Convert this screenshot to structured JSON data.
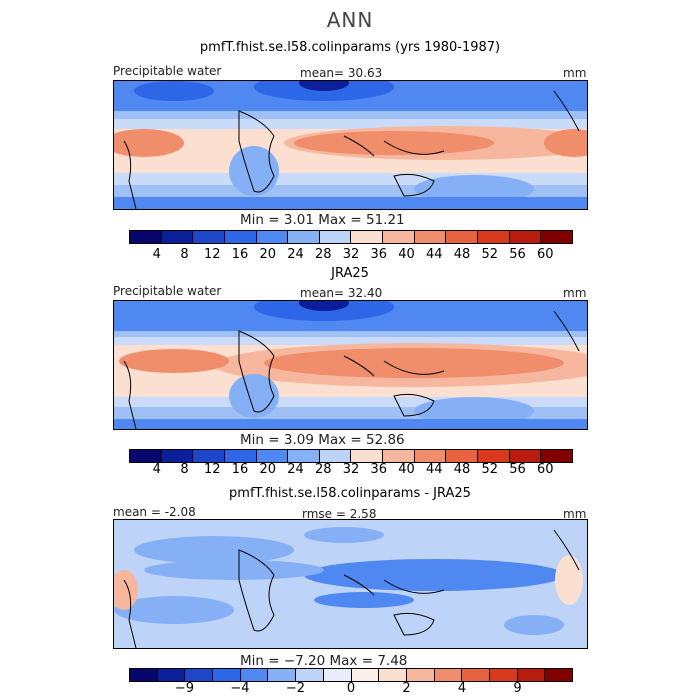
{
  "figure": {
    "title": "ANN",
    "units": "mm",
    "colors": {
      "levels14": [
        "#06066c",
        "#0c1f9a",
        "#1e46c9",
        "#2d66e6",
        "#4f88f0",
        "#86b0f5",
        "#bdd4f8",
        "#fbe0d2",
        "#f7b79e",
        "#f08d6b",
        "#e8623f",
        "#d93a1e",
        "#b81c0e",
        "#800000"
      ],
      "levels16": [
        "#06066c",
        "#0c1f9a",
        "#1e46c9",
        "#2d66e6",
        "#4f88f0",
        "#86b0f5",
        "#bdd4f8",
        "#e7eefa",
        "#fdf0e8",
        "#fbe0d2",
        "#f7b79e",
        "#f08d6b",
        "#e8623f",
        "#d93a1e",
        "#b81c0e",
        "#800000"
      ]
    }
  },
  "panels": [
    {
      "title": "pmfT.fhist.se.l58.colinparams (yrs 1980-1987)",
      "left_label": "Precipitable water",
      "center_label": "mean=   30.63",
      "right_label": "mm",
      "minmax": "Min =     3.01  Max =   51.21",
      "colorbar_ticks": [
        "4",
        "8",
        "12",
        "16",
        "20",
        "24",
        "28",
        "32",
        "36",
        "40",
        "44",
        "48",
        "52",
        "56",
        "60"
      ]
    },
    {
      "title": "JRA25",
      "left_label": "Precipitable water",
      "center_label": "mean=   32.40",
      "right_label": "mm",
      "minmax": "Min =     3.09  Max =   52.86",
      "colorbar_ticks": [
        "4",
        "8",
        "12",
        "16",
        "20",
        "24",
        "28",
        "32",
        "36",
        "40",
        "44",
        "48",
        "52",
        "56",
        "60"
      ]
    },
    {
      "title": "pmfT.fhist.se.l58.colinparams - JRA25",
      "left_label": "mean =  -2.08",
      "center_label": "rmse =    2.58",
      "right_label": "mm",
      "minmax": "Min =   −7.20  Max =    7.48",
      "colorbar_ticks": [
        "−9",
        "−4",
        "−2",
        "0",
        "2",
        "4",
        "9"
      ]
    }
  ],
  "chart_data": [
    {
      "type": "heatmap",
      "title": "pmfT.fhist.se.l58.colinparams (yrs 1980-1987)",
      "variable": "Precipitable water",
      "units": "mm",
      "mean": 30.63,
      "min": 3.01,
      "max": 51.21,
      "contour_levels": [
        4,
        8,
        12,
        16,
        20,
        24,
        28,
        32,
        36,
        40,
        44,
        48,
        52,
        56,
        60
      ]
    },
    {
      "type": "heatmap",
      "title": "JRA25",
      "variable": "Precipitable water",
      "units": "mm",
      "mean": 32.4,
      "min": 3.09,
      "max": 52.86,
      "contour_levels": [
        4,
        8,
        12,
        16,
        20,
        24,
        28,
        32,
        36,
        40,
        44,
        48,
        52,
        56,
        60
      ]
    },
    {
      "type": "heatmap",
      "title": "pmfT.fhist.se.l58.colinparams - JRA25",
      "units": "mm",
      "mean": -2.08,
      "rmse": 2.58,
      "min": -7.2,
      "max": 7.48,
      "contour_levels": [
        -9,
        -4,
        -2,
        0,
        2,
        4,
        9
      ]
    }
  ]
}
